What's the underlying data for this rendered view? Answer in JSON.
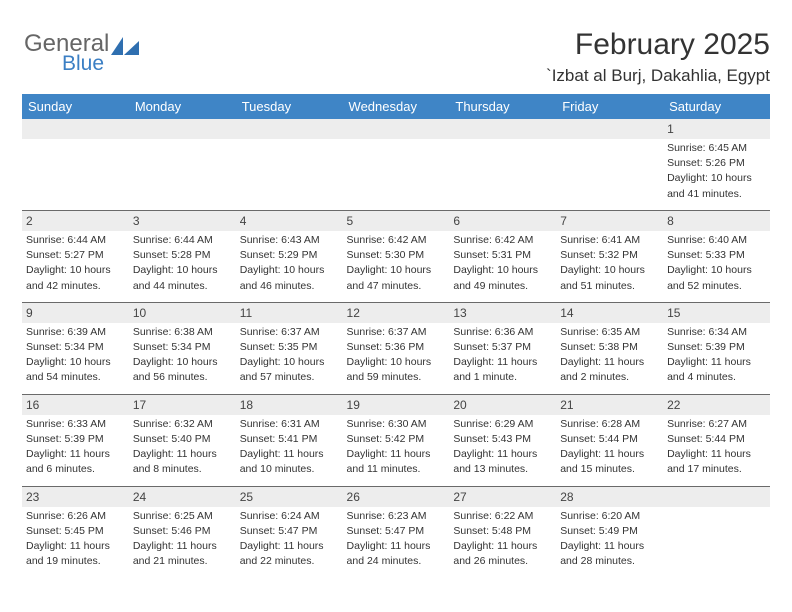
{
  "brand": {
    "word1": "General",
    "word2": "Blue",
    "icon_color": "#2f6fb0"
  },
  "title": "February 2025",
  "location": "`Izbat al Burj, Dakahlia, Egypt",
  "colors": {
    "header_bg": "#3f85c6",
    "header_text": "#ffffff",
    "daynum_bg": "#ededed",
    "border": "#6a6a6a",
    "text": "#333333"
  },
  "day_headers": [
    "Sunday",
    "Monday",
    "Tuesday",
    "Wednesday",
    "Thursday",
    "Friday",
    "Saturday"
  ],
  "weeks": [
    [
      null,
      null,
      null,
      null,
      null,
      null,
      {
        "n": "1",
        "sunrise": "6:45 AM",
        "sunset": "5:26 PM",
        "daylight": "10 hours and 41 minutes."
      }
    ],
    [
      {
        "n": "2",
        "sunrise": "6:44 AM",
        "sunset": "5:27 PM",
        "daylight": "10 hours and 42 minutes."
      },
      {
        "n": "3",
        "sunrise": "6:44 AM",
        "sunset": "5:28 PM",
        "daylight": "10 hours and 44 minutes."
      },
      {
        "n": "4",
        "sunrise": "6:43 AM",
        "sunset": "5:29 PM",
        "daylight": "10 hours and 46 minutes."
      },
      {
        "n": "5",
        "sunrise": "6:42 AM",
        "sunset": "5:30 PM",
        "daylight": "10 hours and 47 minutes."
      },
      {
        "n": "6",
        "sunrise": "6:42 AM",
        "sunset": "5:31 PM",
        "daylight": "10 hours and 49 minutes."
      },
      {
        "n": "7",
        "sunrise": "6:41 AM",
        "sunset": "5:32 PM",
        "daylight": "10 hours and 51 minutes."
      },
      {
        "n": "8",
        "sunrise": "6:40 AM",
        "sunset": "5:33 PM",
        "daylight": "10 hours and 52 minutes."
      }
    ],
    [
      {
        "n": "9",
        "sunrise": "6:39 AM",
        "sunset": "5:34 PM",
        "daylight": "10 hours and 54 minutes."
      },
      {
        "n": "10",
        "sunrise": "6:38 AM",
        "sunset": "5:34 PM",
        "daylight": "10 hours and 56 minutes."
      },
      {
        "n": "11",
        "sunrise": "6:37 AM",
        "sunset": "5:35 PM",
        "daylight": "10 hours and 57 minutes."
      },
      {
        "n": "12",
        "sunrise": "6:37 AM",
        "sunset": "5:36 PM",
        "daylight": "10 hours and 59 minutes."
      },
      {
        "n": "13",
        "sunrise": "6:36 AM",
        "sunset": "5:37 PM",
        "daylight": "11 hours and 1 minute."
      },
      {
        "n": "14",
        "sunrise": "6:35 AM",
        "sunset": "5:38 PM",
        "daylight": "11 hours and 2 minutes."
      },
      {
        "n": "15",
        "sunrise": "6:34 AM",
        "sunset": "5:39 PM",
        "daylight": "11 hours and 4 minutes."
      }
    ],
    [
      {
        "n": "16",
        "sunrise": "6:33 AM",
        "sunset": "5:39 PM",
        "daylight": "11 hours and 6 minutes."
      },
      {
        "n": "17",
        "sunrise": "6:32 AM",
        "sunset": "5:40 PM",
        "daylight": "11 hours and 8 minutes."
      },
      {
        "n": "18",
        "sunrise": "6:31 AM",
        "sunset": "5:41 PM",
        "daylight": "11 hours and 10 minutes."
      },
      {
        "n": "19",
        "sunrise": "6:30 AM",
        "sunset": "5:42 PM",
        "daylight": "11 hours and 11 minutes."
      },
      {
        "n": "20",
        "sunrise": "6:29 AM",
        "sunset": "5:43 PM",
        "daylight": "11 hours and 13 minutes."
      },
      {
        "n": "21",
        "sunrise": "6:28 AM",
        "sunset": "5:44 PM",
        "daylight": "11 hours and 15 minutes."
      },
      {
        "n": "22",
        "sunrise": "6:27 AM",
        "sunset": "5:44 PM",
        "daylight": "11 hours and 17 minutes."
      }
    ],
    [
      {
        "n": "23",
        "sunrise": "6:26 AM",
        "sunset": "5:45 PM",
        "daylight": "11 hours and 19 minutes."
      },
      {
        "n": "24",
        "sunrise": "6:25 AM",
        "sunset": "5:46 PM",
        "daylight": "11 hours and 21 minutes."
      },
      {
        "n": "25",
        "sunrise": "6:24 AM",
        "sunset": "5:47 PM",
        "daylight": "11 hours and 22 minutes."
      },
      {
        "n": "26",
        "sunrise": "6:23 AM",
        "sunset": "5:47 PM",
        "daylight": "11 hours and 24 minutes."
      },
      {
        "n": "27",
        "sunrise": "6:22 AM",
        "sunset": "5:48 PM",
        "daylight": "11 hours and 26 minutes."
      },
      {
        "n": "28",
        "sunrise": "6:20 AM",
        "sunset": "5:49 PM",
        "daylight": "11 hours and 28 minutes."
      },
      null
    ]
  ],
  "labels": {
    "sunrise": "Sunrise:",
    "sunset": "Sunset:",
    "daylight": "Daylight:"
  }
}
